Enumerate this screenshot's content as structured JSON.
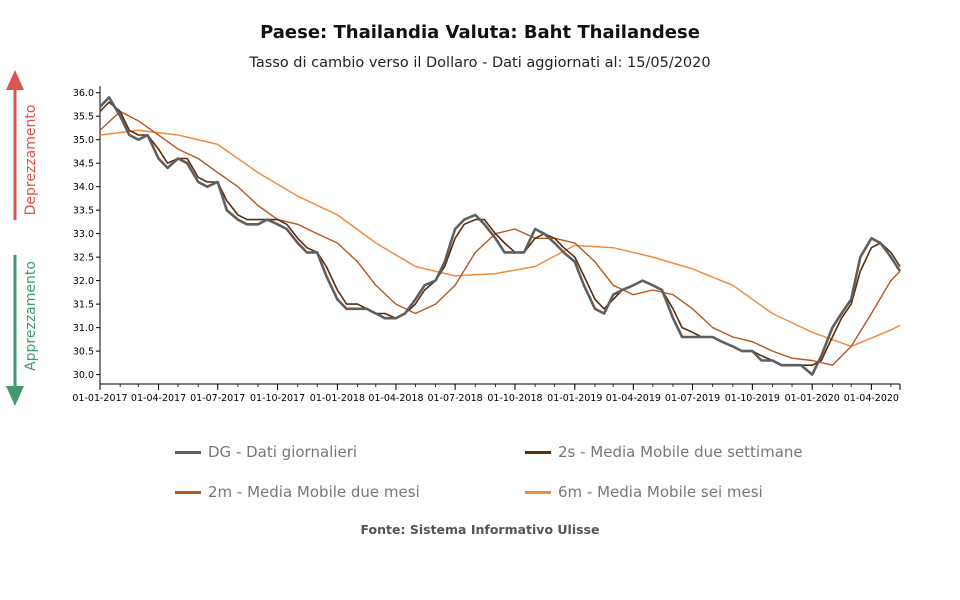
{
  "header": {
    "title": "Paese: Thailandia Valuta: Baht Thailandese",
    "subtitle": "Tasso di cambio verso il Dollaro - Dati aggiornati al: 15/05/2020"
  },
  "side_labels": {
    "up": "Deprezzamento",
    "down": "Apprezzamento",
    "up_color": "#d9534f",
    "down_color": "#3f9a6d"
  },
  "source": "Fonte: Sistema Informativo Ulisse",
  "chart_data": {
    "type": "line",
    "x_tick_labels": [
      "01-01-2017",
      "01-04-2017",
      "01-07-2017",
      "01-10-2017",
      "01-01-2018",
      "01-04-2018",
      "01-07-2018",
      "01-10-2018",
      "01-01-2019",
      "01-04-2019",
      "01-07-2019",
      "01-10-2019",
      "01-01-2020",
      "01-04-2020"
    ],
    "x_start": "01-01-2017",
    "x_end": "15-05-2020",
    "ylim": [
      29.8,
      36.1
    ],
    "y_ticks": [
      30.0,
      30.5,
      31.0,
      31.5,
      32.0,
      32.5,
      33.0,
      33.5,
      34.0,
      34.5,
      35.0,
      35.5,
      36.0
    ],
    "series": [
      {
        "name": "DG - Dati giornalieri",
        "color": "#5f5f5f",
        "x": [
          "01-01-2017",
          "15-01-2017",
          "01-02-2017",
          "15-02-2017",
          "01-03-2017",
          "15-03-2017",
          "01-04-2017",
          "15-04-2017",
          "01-05-2017",
          "15-05-2017",
          "01-06-2017",
          "15-06-2017",
          "01-07-2017",
          "15-07-2017",
          "01-08-2017",
          "15-08-2017",
          "01-09-2017",
          "15-09-2017",
          "01-10-2017",
          "15-10-2017",
          "01-11-2017",
          "15-11-2017",
          "01-12-2017",
          "15-12-2017",
          "01-01-2018",
          "15-01-2018",
          "01-02-2018",
          "15-02-2018",
          "01-03-2018",
          "15-03-2018",
          "01-04-2018",
          "15-04-2018",
          "01-05-2018",
          "15-05-2018",
          "01-06-2018",
          "15-06-2018",
          "01-07-2018",
          "15-07-2018",
          "01-08-2018",
          "15-08-2018",
          "01-09-2018",
          "15-09-2018",
          "01-10-2018",
          "15-10-2018",
          "01-11-2018",
          "15-11-2018",
          "01-12-2018",
          "15-12-2018",
          "01-01-2019",
          "15-01-2019",
          "01-02-2019",
          "15-02-2019",
          "01-03-2019",
          "15-03-2019",
          "01-04-2019",
          "15-04-2019",
          "01-05-2019",
          "15-05-2019",
          "01-06-2019",
          "15-06-2019",
          "01-07-2019",
          "15-07-2019",
          "01-08-2019",
          "15-08-2019",
          "01-09-2019",
          "15-09-2019",
          "01-10-2019",
          "15-10-2019",
          "01-11-2019",
          "15-11-2019",
          "01-12-2019",
          "15-12-2019",
          "01-01-2020",
          "15-01-2020",
          "01-02-2020",
          "15-02-2020",
          "01-03-2020",
          "15-03-2020",
          "01-04-2020",
          "15-04-2020",
          "01-05-2020",
          "15-05-2020"
        ],
        "values": [
          35.7,
          35.9,
          35.5,
          35.1,
          35.0,
          35.1,
          34.6,
          34.4,
          34.6,
          34.5,
          34.1,
          34.0,
          34.1,
          33.5,
          33.3,
          33.2,
          33.2,
          33.3,
          33.2,
          33.1,
          32.8,
          32.6,
          32.6,
          32.1,
          31.6,
          31.4,
          31.4,
          31.4,
          31.3,
          31.2,
          31.2,
          31.3,
          31.6,
          31.9,
          32.0,
          32.4,
          33.1,
          33.3,
          33.4,
          33.2,
          32.9,
          32.6,
          32.6,
          32.6,
          33.1,
          33.0,
          32.8,
          32.6,
          32.4,
          31.9,
          31.4,
          31.3,
          31.7,
          31.8,
          31.9,
          32.0,
          31.9,
          31.8,
          31.2,
          30.8,
          30.8,
          30.8,
          30.8,
          30.7,
          30.6,
          30.5,
          30.5,
          30.3,
          30.3,
          30.2,
          30.2,
          30.2,
          30.0,
          30.4,
          31.0,
          31.3,
          31.6,
          32.5,
          32.9,
          32.8,
          32.5,
          32.2
        ]
      },
      {
        "name": "2s - Media Mobile due settimane",
        "color": "#5a2d0c",
        "x": [
          "01-01-2017",
          "15-01-2017",
          "01-02-2017",
          "15-02-2017",
          "01-03-2017",
          "15-03-2017",
          "01-04-2017",
          "15-04-2017",
          "01-05-2017",
          "15-05-2017",
          "01-06-2017",
          "15-06-2017",
          "01-07-2017",
          "15-07-2017",
          "01-08-2017",
          "15-08-2017",
          "01-09-2017",
          "15-09-2017",
          "01-10-2017",
          "15-10-2017",
          "01-11-2017",
          "15-11-2017",
          "01-12-2017",
          "15-12-2017",
          "01-01-2018",
          "15-01-2018",
          "01-02-2018",
          "15-02-2018",
          "01-03-2018",
          "15-03-2018",
          "01-04-2018",
          "15-04-2018",
          "01-05-2018",
          "15-05-2018",
          "01-06-2018",
          "15-06-2018",
          "01-07-2018",
          "15-07-2018",
          "01-08-2018",
          "15-08-2018",
          "01-09-2018",
          "15-09-2018",
          "01-10-2018",
          "15-10-2018",
          "01-11-2018",
          "15-11-2018",
          "01-12-2018",
          "15-12-2018",
          "01-01-2019",
          "15-01-2019",
          "01-02-2019",
          "15-02-2019",
          "01-03-2019",
          "15-03-2019",
          "01-04-2019",
          "15-04-2019",
          "01-05-2019",
          "15-05-2019",
          "01-06-2019",
          "15-06-2019",
          "01-07-2019",
          "15-07-2019",
          "01-08-2019",
          "15-08-2019",
          "01-09-2019",
          "15-09-2019",
          "01-10-2019",
          "15-10-2019",
          "01-11-2019",
          "15-11-2019",
          "01-12-2019",
          "15-12-2019",
          "01-01-2020",
          "15-01-2020",
          "01-02-2020",
          "15-02-2020",
          "01-03-2020",
          "15-03-2020",
          "01-04-2020",
          "15-04-2020",
          "01-05-2020",
          "15-05-2020"
        ],
        "values": [
          35.6,
          35.8,
          35.6,
          35.2,
          35.1,
          35.1,
          34.8,
          34.5,
          34.6,
          34.6,
          34.2,
          34.1,
          34.1,
          33.7,
          33.4,
          33.3,
          33.3,
          33.3,
          33.3,
          33.2,
          32.9,
          32.7,
          32.6,
          32.3,
          31.8,
          31.5,
          31.5,
          31.4,
          31.3,
          31.3,
          31.2,
          31.3,
          31.5,
          31.8,
          32.0,
          32.3,
          32.9,
          33.2,
          33.3,
          33.3,
          33.0,
          32.8,
          32.6,
          32.6,
          32.9,
          33.0,
          32.9,
          32.7,
          32.5,
          32.1,
          31.6,
          31.4,
          31.6,
          31.8,
          31.9,
          32.0,
          31.9,
          31.8,
          31.4,
          31.0,
          30.9,
          30.8,
          30.8,
          30.7,
          30.6,
          30.5,
          30.5,
          30.4,
          30.3,
          30.2,
          30.2,
          30.2,
          30.2,
          30.3,
          30.8,
          31.2,
          31.5,
          32.2,
          32.7,
          32.8,
          32.6,
          32.3
        ]
      },
      {
        "name": "2m - Media Mobile due mesi",
        "color": "#b5571e",
        "x": [
          "01-01-2017",
          "01-02-2017",
          "01-03-2017",
          "01-04-2017",
          "01-05-2017",
          "01-06-2017",
          "01-07-2017",
          "01-08-2017",
          "01-09-2017",
          "01-10-2017",
          "01-11-2017",
          "01-12-2017",
          "01-01-2018",
          "01-02-2018",
          "01-03-2018",
          "01-04-2018",
          "01-05-2018",
          "01-06-2018",
          "01-07-2018",
          "01-08-2018",
          "01-09-2018",
          "01-10-2018",
          "01-11-2018",
          "01-12-2018",
          "01-01-2019",
          "01-02-2019",
          "01-03-2019",
          "01-04-2019",
          "01-05-2019",
          "01-06-2019",
          "01-07-2019",
          "01-08-2019",
          "01-09-2019",
          "01-10-2019",
          "01-11-2019",
          "01-12-2019",
          "01-01-2020",
          "01-02-2020",
          "01-03-2020",
          "01-04-2020",
          "01-05-2020",
          "15-05-2020"
        ],
        "values": [
          35.2,
          35.6,
          35.4,
          35.1,
          34.8,
          34.6,
          34.3,
          34.0,
          33.6,
          33.3,
          33.2,
          33.0,
          32.8,
          32.4,
          31.9,
          31.5,
          31.3,
          31.5,
          31.9,
          32.6,
          33.0,
          33.1,
          32.9,
          32.9,
          32.8,
          32.4,
          31.9,
          31.7,
          31.8,
          31.7,
          31.4,
          31.0,
          30.8,
          30.7,
          30.5,
          30.35,
          30.3,
          30.2,
          30.6,
          31.3,
          32.0,
          32.2
        ]
      },
      {
        "name": "6m - Media Mobile sei mesi",
        "color": "#f08b3e",
        "x": [
          "01-01-2017",
          "01-03-2017",
          "01-05-2017",
          "01-07-2017",
          "01-09-2017",
          "01-11-2017",
          "01-01-2018",
          "01-03-2018",
          "01-05-2018",
          "01-07-2018",
          "01-09-2018",
          "01-11-2018",
          "01-01-2019",
          "01-03-2019",
          "01-05-2019",
          "01-07-2019",
          "01-09-2019",
          "01-11-2019",
          "01-01-2020",
          "01-03-2020",
          "01-05-2020",
          "15-05-2020"
        ],
        "values": [
          35.1,
          35.2,
          35.1,
          34.9,
          34.3,
          33.8,
          33.4,
          32.8,
          32.3,
          32.1,
          32.15,
          32.3,
          32.75,
          32.7,
          32.5,
          32.25,
          31.9,
          31.3,
          30.9,
          30.6,
          30.95,
          31.05
        ]
      }
    ],
    "legend_position": "bottom",
    "grid": false
  }
}
